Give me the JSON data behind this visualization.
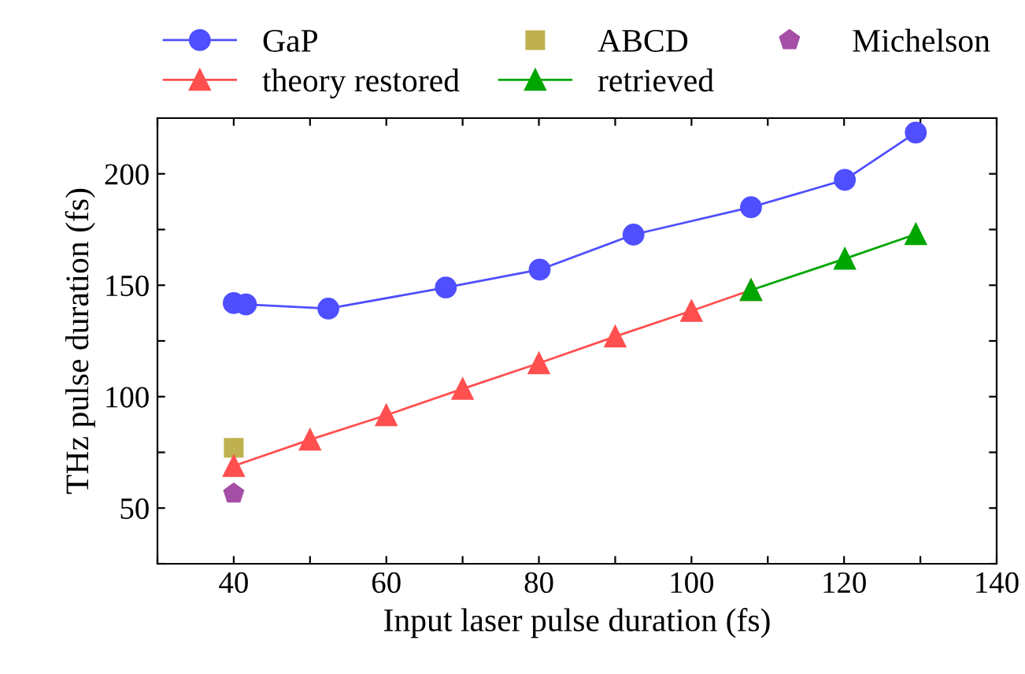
{
  "chart_data": {
    "type": "line",
    "xlabel": "Input laser pulse duration (fs)",
    "ylabel": "THz pulse duration (fs)",
    "xlim": [
      30,
      140
    ],
    "xticks": [
      {
        "value": 30,
        "label": null
      },
      40,
      {
        "value": 50,
        "label": null
      },
      60,
      {
        "value": 70,
        "label": null
      },
      80,
      {
        "value": 90,
        "label": null
      },
      100,
      {
        "value": 110,
        "label": null
      },
      120,
      {
        "value": 130,
        "label": null
      },
      140
    ],
    "ylim": [
      25,
      225
    ],
    "yticks": [
      {
        "value": 25,
        "label": null
      },
      50,
      {
        "value": 75,
        "label": null
      },
      100,
      {
        "value": 125,
        "label": null
      },
      150,
      {
        "value": 175,
        "label": null
      },
      200
    ],
    "grid": false,
    "legend": "top",
    "line_style": "solid",
    "series": [
      {
        "name": "GaP",
        "color": "#4f4fff",
        "marker": "circle",
        "x": [
          40,
          41.6,
          52.4,
          67.8,
          80.1,
          92.4,
          107.8,
          120.1,
          129.4
        ],
        "values": [
          142,
          141.4,
          139.5,
          149,
          157,
          172.7,
          185,
          197.3,
          218.5
        ]
      },
      {
        "name": "ABCD",
        "color": "#bfb14f",
        "type": "scatter",
        "marker": "square",
        "x": [
          40
        ],
        "values": [
          77
        ]
      },
      {
        "name": "Michelson",
        "color": "#a64fa6",
        "type": "scatter",
        "x": [
          40
        ],
        "values": [
          56.5
        ]
      },
      {
        "name": "theory restored",
        "color": "#ff4f4f",
        "marker": "triangle",
        "x": [
          40,
          50,
          60,
          70,
          80,
          90,
          100,
          107.8
        ],
        "values": [
          68.9,
          80.7,
          91.7,
          103.5,
          115,
          127,
          138.5,
          147.8
        ]
      },
      {
        "name": "retrieved",
        "color": "#00a600",
        "marker": "triangle",
        "x": [
          107.8,
          120.1,
          129.4
        ],
        "values": [
          147.8,
          161.9,
          172.9
        ]
      }
    ]
  }
}
